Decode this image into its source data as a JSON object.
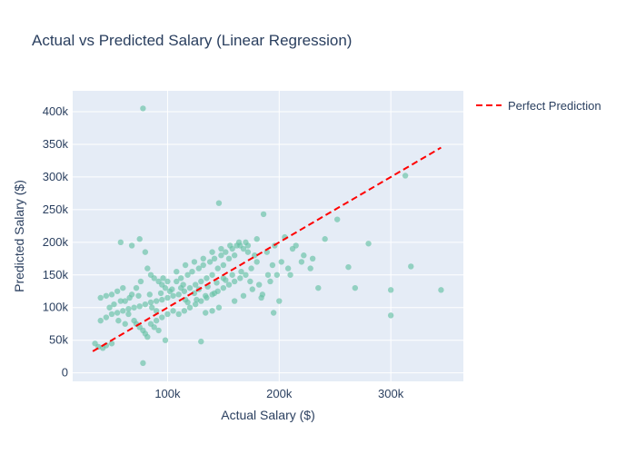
{
  "chart_data": {
    "type": "scatter",
    "title": "Actual vs Predicted Salary (Linear Regression)",
    "xlabel": "Actual Salary ($)",
    "ylabel": "Predicted Salary ($)",
    "xlim": [
      15000,
      365000
    ],
    "ylim": [
      -13000,
      432000
    ],
    "x_ticks": [
      {
        "value": 100000,
        "label": "100k"
      },
      {
        "value": 200000,
        "label": "200k"
      },
      {
        "value": 300000,
        "label": "300k"
      }
    ],
    "y_ticks": [
      {
        "value": 0,
        "label": "0"
      },
      {
        "value": 50000,
        "label": "50k"
      },
      {
        "value": 100000,
        "label": "100k"
      },
      {
        "value": 150000,
        "label": "150k"
      },
      {
        "value": 200000,
        "label": "200k"
      },
      {
        "value": 250000,
        "label": "250k"
      },
      {
        "value": 300000,
        "label": "300k"
      },
      {
        "value": 350000,
        "label": "350k"
      },
      {
        "value": 400000,
        "label": "400k"
      }
    ],
    "grid": true,
    "legend_position": "top-right",
    "colors": {
      "points": "#66c2a5",
      "line": "#ff0000",
      "plot_bg": "#e5ecf6",
      "grid": "#ffffff"
    },
    "series": [
      {
        "type": "scatter",
        "points": [
          [
            78000,
            405000
          ],
          [
            146000,
            260000
          ],
          [
            313000,
            302000
          ],
          [
            252000,
            235000
          ],
          [
            186000,
            243000
          ],
          [
            280000,
            198000
          ],
          [
            262000,
            162000
          ],
          [
            318000,
            163000
          ],
          [
            300000,
            127000
          ],
          [
            345000,
            127000
          ],
          [
            300000,
            88000
          ],
          [
            268000,
            130000
          ],
          [
            235000,
            130000
          ],
          [
            241000,
            205000
          ],
          [
            228000,
            160000
          ],
          [
            212000,
            190000
          ],
          [
            205000,
            208000
          ],
          [
            196000,
            195000
          ],
          [
            189000,
            185000
          ],
          [
            180000,
            170000
          ],
          [
            175000,
            160000
          ],
          [
            190000,
            150000
          ],
          [
            185000,
            120000
          ],
          [
            195000,
            92000
          ],
          [
            200000,
            110000
          ],
          [
            210000,
            150000
          ],
          [
            220000,
            170000
          ],
          [
            170000,
            200000
          ],
          [
            165000,
            195000
          ],
          [
            160000,
            180000
          ],
          [
            155000,
            175000
          ],
          [
            150000,
            165000
          ],
          [
            145000,
            160000
          ],
          [
            140000,
            150000
          ],
          [
            135000,
            145000
          ],
          [
            130000,
            140000
          ],
          [
            125000,
            135000
          ],
          [
            120000,
            130000
          ],
          [
            115000,
            125000
          ],
          [
            110000,
            120000
          ],
          [
            105000,
            118000
          ],
          [
            100000,
            115000
          ],
          [
            95000,
            112000
          ],
          [
            90000,
            110000
          ],
          [
            85000,
            108000
          ],
          [
            80000,
            105000
          ],
          [
            75000,
            102000
          ],
          [
            70000,
            100000
          ],
          [
            65000,
            98000
          ],
          [
            60000,
            95000
          ],
          [
            55000,
            92000
          ],
          [
            50000,
            90000
          ],
          [
            45000,
            85000
          ],
          [
            40000,
            80000
          ],
          [
            35000,
            45000
          ],
          [
            38000,
            40000
          ],
          [
            42000,
            38000
          ],
          [
            45000,
            42000
          ],
          [
            50000,
            45000
          ],
          [
            40000,
            115000
          ],
          [
            45000,
            118000
          ],
          [
            50000,
            120000
          ],
          [
            55000,
            125000
          ],
          [
            60000,
            130000
          ],
          [
            58000,
            200000
          ],
          [
            68000,
            195000
          ],
          [
            75000,
            205000
          ],
          [
            80000,
            185000
          ],
          [
            82000,
            160000
          ],
          [
            85000,
            150000
          ],
          [
            88000,
            145000
          ],
          [
            92000,
            140000
          ],
          [
            95000,
            135000
          ],
          [
            98000,
            130000
          ],
          [
            102000,
            125000
          ],
          [
            108000,
            140000
          ],
          [
            112000,
            145000
          ],
          [
            118000,
            150000
          ],
          [
            122000,
            155000
          ],
          [
            128000,
            160000
          ],
          [
            132000,
            165000
          ],
          [
            138000,
            170000
          ],
          [
            142000,
            175000
          ],
          [
            148000,
            180000
          ],
          [
            152000,
            185000
          ],
          [
            158000,
            190000
          ],
          [
            162000,
            195000
          ],
          [
            168000,
            190000
          ],
          [
            172000,
            185000
          ],
          [
            178000,
            180000
          ],
          [
            70000,
            80000
          ],
          [
            72000,
            75000
          ],
          [
            75000,
            70000
          ],
          [
            78000,
            65000
          ],
          [
            80000,
            60000
          ],
          [
            82000,
            55000
          ],
          [
            78000,
            15000
          ],
          [
            88000,
            70000
          ],
          [
            92000,
            65000
          ],
          [
            98000,
            50000
          ],
          [
            130000,
            48000
          ],
          [
            110000,
            90000
          ],
          [
            115000,
            95000
          ],
          [
            120000,
            100000
          ],
          [
            125000,
            105000
          ],
          [
            130000,
            110000
          ],
          [
            135000,
            115000
          ],
          [
            140000,
            120000
          ],
          [
            145000,
            125000
          ],
          [
            150000,
            130000
          ],
          [
            155000,
            135000
          ],
          [
            160000,
            140000
          ],
          [
            165000,
            145000
          ],
          [
            170000,
            150000
          ],
          [
            100000,
            90000
          ],
          [
            105000,
            95000
          ],
          [
            95000,
            85000
          ],
          [
            90000,
            80000
          ],
          [
            85000,
            75000
          ],
          [
            65000,
            90000
          ],
          [
            62000,
            110000
          ],
          [
            68000,
            120000
          ],
          [
            72000,
            130000
          ],
          [
            76000,
            140000
          ],
          [
            86000,
            100000
          ],
          [
            90000,
            95000
          ],
          [
            118000,
            108000
          ],
          [
            126000,
            112000
          ],
          [
            134000,
            118000
          ],
          [
            142000,
            122000
          ],
          [
            150000,
            145000
          ],
          [
            158000,
            150000
          ],
          [
            166000,
            155000
          ],
          [
            174000,
            140000
          ],
          [
            182000,
            135000
          ],
          [
            194000,
            165000
          ],
          [
            202000,
            170000
          ],
          [
            208000,
            160000
          ],
          [
            215000,
            195000
          ],
          [
            222000,
            180000
          ],
          [
            230000,
            175000
          ],
          [
            112000,
            130000
          ],
          [
            116000,
            112000
          ],
          [
            124000,
            122000
          ],
          [
            128000,
            128000
          ],
          [
            136000,
            132000
          ],
          [
            144000,
            138000
          ],
          [
            152000,
            142000
          ],
          [
            56000,
            80000
          ],
          [
            62000,
            75000
          ],
          [
            48000,
            100000
          ],
          [
            52000,
            105000
          ],
          [
            58000,
            110000
          ],
          [
            66000,
            115000
          ],
          [
            74000,
            118000
          ],
          [
            84000,
            120000
          ],
          [
            94000,
            122000
          ],
          [
            104000,
            128000
          ],
          [
            114000,
            135000
          ],
          [
            146000,
            100000
          ],
          [
            140000,
            95000
          ],
          [
            134000,
            92000
          ],
          [
            160000,
            110000
          ],
          [
            168000,
            118000
          ],
          [
            176000,
            128000
          ],
          [
            184000,
            115000
          ],
          [
            192000,
            140000
          ],
          [
            198000,
            150000
          ],
          [
            100000,
            140000
          ],
          [
            96000,
            145000
          ],
          [
            108000,
            155000
          ],
          [
            116000,
            165000
          ],
          [
            124000,
            170000
          ],
          [
            132000,
            175000
          ],
          [
            140000,
            185000
          ],
          [
            148000,
            190000
          ],
          [
            156000,
            195000
          ],
          [
            164000,
            200000
          ],
          [
            172000,
            195000
          ],
          [
            180000,
            205000
          ]
        ]
      },
      {
        "type": "line",
        "name": "Perfect Prediction",
        "x": [
          33000,
          345000
        ],
        "y": [
          33000,
          345000
        ]
      }
    ]
  }
}
